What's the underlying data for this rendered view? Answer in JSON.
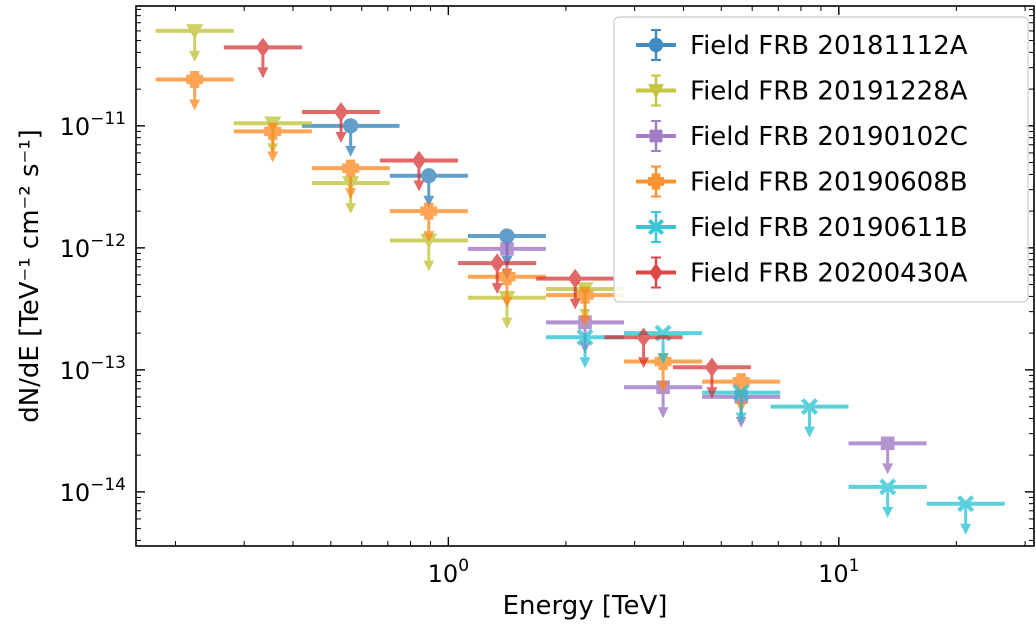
{
  "chart_data": {
    "type": "scatter",
    "xlabel": "Energy [TeV]",
    "ylabel": "dN/dE [TeV⁻¹ cm⁻² s⁻¹]",
    "x_scale": "log",
    "y_scale": "log",
    "xlim": [
      0.1585,
      31.62
    ],
    "ylim": [
      3.6e-15,
      9.6e-11
    ],
    "x_ticks": [
      {
        "value": 1,
        "base": "10",
        "exp": "0"
      },
      {
        "value": 10,
        "base": "10",
        "exp": "1"
      }
    ],
    "y_ticks": [
      {
        "value": 1e-14,
        "base": "10",
        "exp": "−14"
      },
      {
        "value": 1e-13,
        "base": "10",
        "exp": "−13"
      },
      {
        "value": 1e-12,
        "base": "10",
        "exp": "−12"
      },
      {
        "value": 1e-11,
        "base": "10",
        "exp": "−11"
      }
    ],
    "grid": false,
    "legend_position": "top-right",
    "note": "All points are upper limits (downward arrows); horizontal bars show energy bin extent.",
    "series": [
      {
        "name": "Field FRB 20181112A",
        "color": "#1f77b4",
        "marker": "circle",
        "points": [
          {
            "x": 0.562,
            "xlo": 0.422,
            "xhi": 0.75,
            "y": 1e-11
          },
          {
            "x": 0.891,
            "xlo": 0.708,
            "xhi": 1.122,
            "y": 3.9e-12
          },
          {
            "x": 1.413,
            "xlo": 1.122,
            "xhi": 1.778,
            "y": 1.25e-12
          }
        ]
      },
      {
        "name": "Field FRB 20191228A",
        "color": "#bcbd22",
        "marker": "triangle-down",
        "points": [
          {
            "x": 0.224,
            "xlo": 0.178,
            "xhi": 0.282,
            "y": 6e-11
          },
          {
            "x": 0.355,
            "xlo": 0.282,
            "xhi": 0.447,
            "y": 1.05e-11
          },
          {
            "x": 0.562,
            "xlo": 0.447,
            "xhi": 0.708,
            "y": 3.4e-12
          },
          {
            "x": 0.891,
            "xlo": 0.708,
            "xhi": 1.122,
            "y": 1.15e-12
          },
          {
            "x": 1.413,
            "xlo": 1.122,
            "xhi": 1.778,
            "y": 3.9e-13
          },
          {
            "x": 2.239,
            "xlo": 1.778,
            "xhi": 2.818,
            "y": 4.6e-13
          }
        ]
      },
      {
        "name": "Field FRB 20190102C",
        "color": "#9467bd",
        "marker": "square",
        "points": [
          {
            "x": 1.413,
            "xlo": 1.122,
            "xhi": 1.778,
            "y": 9.8e-13
          },
          {
            "x": 2.239,
            "xlo": 1.778,
            "xhi": 2.818,
            "y": 2.45e-13
          },
          {
            "x": 3.548,
            "xlo": 2.818,
            "xhi": 4.467,
            "y": 7.2e-14
          },
          {
            "x": 5.623,
            "xlo": 4.467,
            "xhi": 7.079,
            "y": 6e-14
          },
          {
            "x": 13.34,
            "xlo": 10.59,
            "xhi": 16.79,
            "y": 2.5e-14
          }
        ]
      },
      {
        "name": "Field FRB 20190608B",
        "color": "#ff7f0e",
        "marker": "plus",
        "points": [
          {
            "x": 0.224,
            "xlo": 0.178,
            "xhi": 0.282,
            "y": 2.4e-11
          },
          {
            "x": 0.355,
            "xlo": 0.282,
            "xhi": 0.447,
            "y": 9e-12
          },
          {
            "x": 0.562,
            "xlo": 0.447,
            "xhi": 0.708,
            "y": 4.5e-12
          },
          {
            "x": 0.891,
            "xlo": 0.708,
            "xhi": 1.122,
            "y": 2e-12
          },
          {
            "x": 1.413,
            "xlo": 1.122,
            "xhi": 1.778,
            "y": 5.8e-13
          },
          {
            "x": 2.239,
            "xlo": 1.778,
            "xhi": 2.818,
            "y": 4.1e-13
          },
          {
            "x": 3.548,
            "xlo": 2.818,
            "xhi": 4.467,
            "y": 1.17e-13
          },
          {
            "x": 5.623,
            "xlo": 4.467,
            "xhi": 7.079,
            "y": 8e-14
          }
        ]
      },
      {
        "name": "Field FRB 20190611B",
        "color": "#17becf",
        "marker": "x-filled",
        "points": [
          {
            "x": 2.239,
            "xlo": 1.778,
            "xhi": 2.818,
            "y": 1.85e-13
          },
          {
            "x": 3.548,
            "xlo": 2.818,
            "xhi": 4.467,
            "y": 2e-13
          },
          {
            "x": 5.623,
            "xlo": 4.467,
            "xhi": 7.079,
            "y": 6.5e-14
          },
          {
            "x": 8.414,
            "xlo": 6.683,
            "xhi": 10.59,
            "y": 5e-14
          },
          {
            "x": 13.34,
            "xlo": 10.59,
            "xhi": 16.79,
            "y": 1.1e-14
          },
          {
            "x": 21.13,
            "xlo": 16.79,
            "xhi": 26.61,
            "y": 8e-15
          }
        ]
      },
      {
        "name": "Field FRB 20200430A",
        "color": "#d62728",
        "marker": "diamond",
        "points": [
          {
            "x": 0.335,
            "xlo": 0.266,
            "xhi": 0.422,
            "y": 4.4e-11
          },
          {
            "x": 0.531,
            "xlo": 0.422,
            "xhi": 0.668,
            "y": 1.3e-11
          },
          {
            "x": 0.841,
            "xlo": 0.668,
            "xhi": 1.059,
            "y": 5.2e-12
          },
          {
            "x": 1.334,
            "xlo": 1.059,
            "xhi": 1.679,
            "y": 7.5e-13
          },
          {
            "x": 2.113,
            "xlo": 1.679,
            "xhi": 2.661,
            "y": 5.6e-13
          },
          {
            "x": 3.162,
            "xlo": 2.512,
            "xhi": 3.981,
            "y": 1.85e-13
          },
          {
            "x": 4.732,
            "xlo": 3.758,
            "xhi": 5.957,
            "y": 1.05e-13
          }
        ]
      }
    ]
  }
}
